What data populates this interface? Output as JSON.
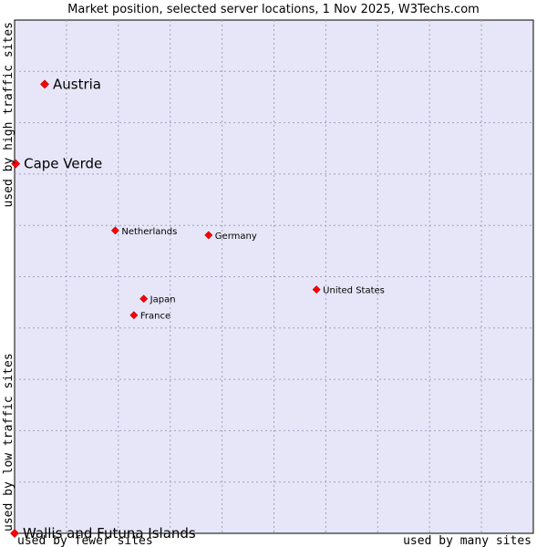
{
  "chart_data": {
    "type": "scatter",
    "title": "Market position, selected server locations, 1 Nov 2025, W3Techs.com",
    "xlabel_left": "used by fewer sites",
    "xlabel_right": "used by many sites",
    "ylabel_low": "used by low traffic sites",
    "ylabel_high": "used by high traffic sites",
    "xlim": [
      0,
      10
    ],
    "ylim": [
      0,
      10
    ],
    "grid": true,
    "colors": {
      "plot_bg": "#e6e6f8",
      "grid": "#a0a0c0",
      "point": "#ff0000",
      "point_edge": "#b00000"
    },
    "points": [
      {
        "name": "Austria",
        "x": 0.58,
        "y": 8.75,
        "size": "large"
      },
      {
        "name": "Cape Verde",
        "x": 0.02,
        "y": 7.2,
        "size": "large"
      },
      {
        "name": "Netherlands",
        "x": 1.94,
        "y": 5.9,
        "size": "small"
      },
      {
        "name": "Germany",
        "x": 3.74,
        "y": 5.81,
        "size": "small"
      },
      {
        "name": "United States",
        "x": 5.82,
        "y": 4.75,
        "size": "small"
      },
      {
        "name": "Japan",
        "x": 2.49,
        "y": 4.57,
        "size": "small"
      },
      {
        "name": "France",
        "x": 2.3,
        "y": 4.25,
        "size": "small"
      },
      {
        "name": "Wallis and Futuna Islands",
        "x": 0.0,
        "y": 0.0,
        "size": "large"
      }
    ]
  }
}
